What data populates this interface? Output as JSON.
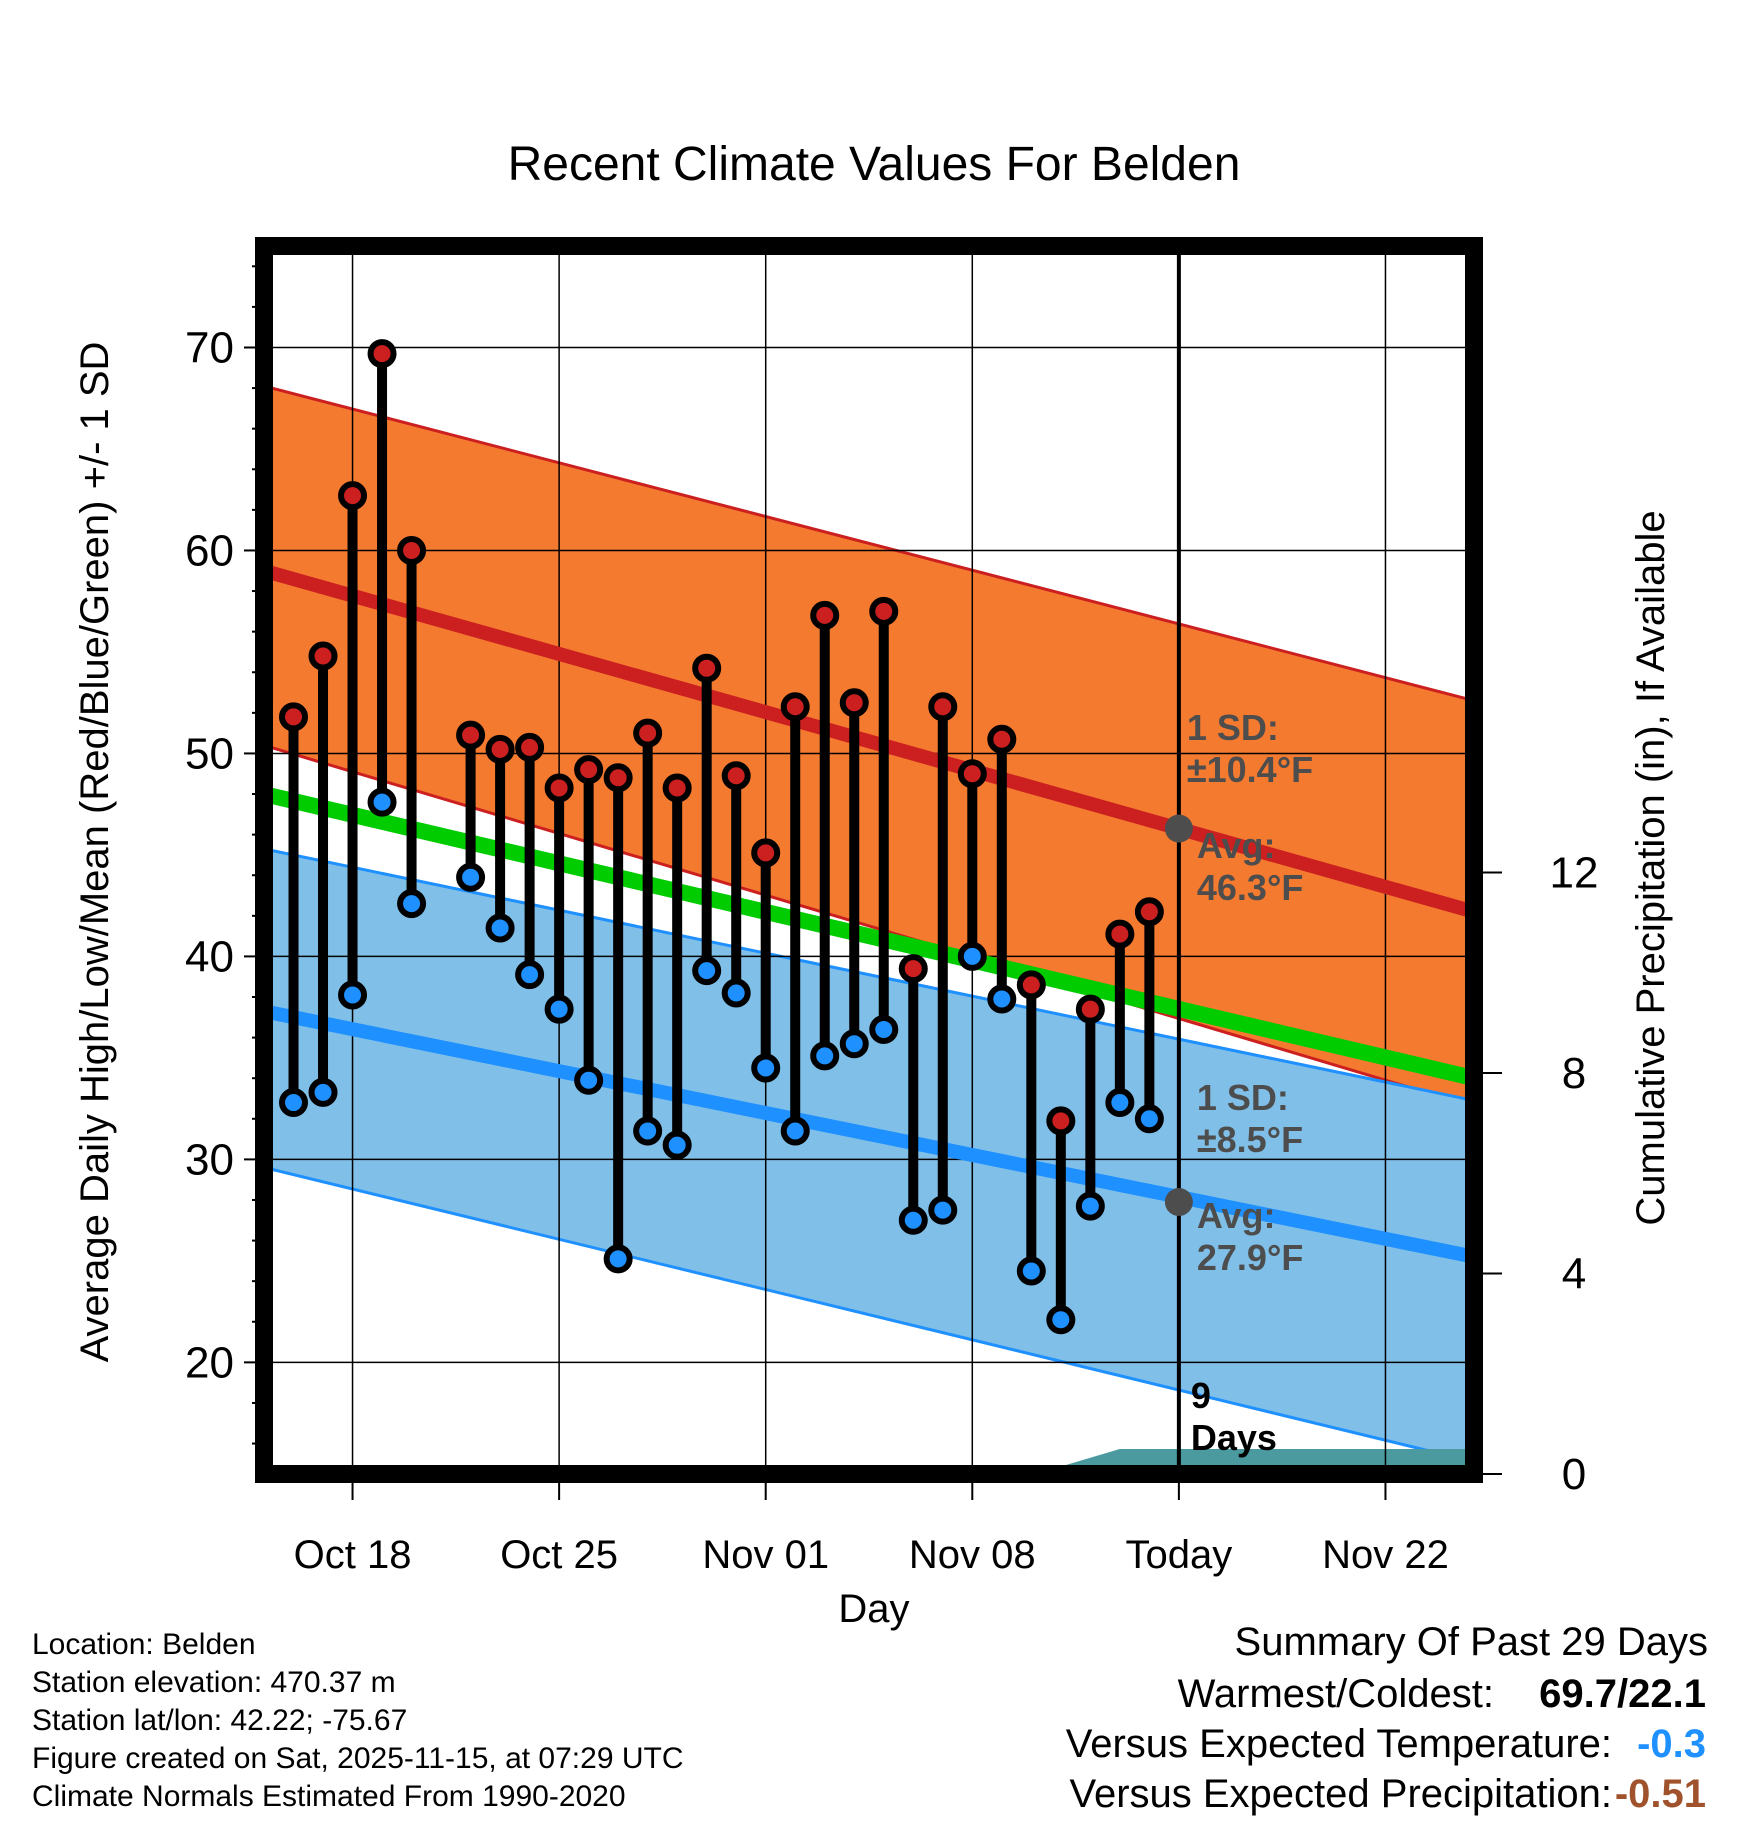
{
  "chart_data": {
    "type": "line",
    "title": "Recent Climate Values For Belden",
    "xlabel": "Day",
    "ylabel": "Average Daily High/Low/Mean (Red/Blue/Green) +/- 1 SD",
    "y2label": "Cumulative Precipitation (in), If Available",
    "x_range_days": [
      0,
      41
    ],
    "x_day0": "Oct 15",
    "ylim": [
      14.5,
      75
    ],
    "y_ticks": [
      "20",
      "30",
      "40",
      "50",
      "60",
      "70"
    ],
    "y2_ticks": [
      {
        "value": 0,
        "label": "0"
      },
      {
        "value": 4,
        "label": "4"
      },
      {
        "value": 8,
        "label": "8"
      },
      {
        "value": 12,
        "label": "12"
      }
    ],
    "y2_max": 24.5,
    "x_ticks": [
      {
        "day": 3,
        "label": "Oct 18"
      },
      {
        "day": 10,
        "label": "Oct 25"
      },
      {
        "day": 17,
        "label": "Nov 01"
      },
      {
        "day": 24,
        "label": "Nov 08"
      },
      {
        "day": 31,
        "label": "Today"
      },
      {
        "day": 38,
        "label": "Nov 22"
      }
    ],
    "today_day": 31,
    "normals": {
      "days": [
        0,
        41
      ],
      "high_avg": [
        59,
        42.2
      ],
      "high_sd_upper": [
        68.1,
        52.6
      ],
      "high_sd_lower": [
        50.4,
        32.6
      ],
      "low_avg": [
        37.3,
        25.2
      ],
      "low_sd_upper": [
        45.3,
        32.9
      ],
      "low_sd_lower": [
        29.6,
        15.1
      ],
      "mean_avg": [
        48,
        34
      ]
    },
    "daily": {
      "days": [
        1,
        2,
        3,
        4,
        5,
        7,
        8,
        9,
        10,
        11,
        12,
        13,
        14,
        15,
        16,
        17,
        18,
        19,
        20,
        21,
        22,
        23,
        24,
        25,
        26,
        27,
        28,
        29,
        30
      ],
      "highs": [
        51.8,
        54.8,
        62.7,
        69.7,
        60,
        50.9,
        50.2,
        50.3,
        48.3,
        49.2,
        48.8,
        51,
        48.3,
        54.2,
        48.9,
        45.1,
        52.3,
        56.8,
        52.5,
        57,
        39.4,
        52.3,
        49,
        50.7,
        38.6,
        31.9,
        37.4,
        41.1,
        42.2
      ],
      "lows": [
        32.8,
        33.3,
        38.1,
        47.6,
        42.6,
        43.9,
        41.4,
        39.1,
        37.4,
        33.9,
        25.1,
        31.4,
        30.7,
        39.3,
        38.2,
        34.5,
        31.4,
        35.1,
        35.7,
        36.4,
        27,
        27.5,
        40,
        37.9,
        24.5,
        22.1,
        27.7,
        32.8,
        32
      ]
    },
    "precipitation": {
      "days": [
        0,
        24,
        27,
        29,
        41
      ],
      "cumulative_in": [
        0,
        0,
        0.15,
        0.5,
        0.5
      ]
    },
    "annotations": {
      "high_sd_label": "1 SD:",
      "high_sd_value": "±10.4°F",
      "high_avg_label": "Avg:",
      "high_avg_value": "46.3°F",
      "low_sd_label": "1 SD:",
      "low_sd_value": "±8.5°F",
      "low_avg_label": "Avg:",
      "low_avg_value": "27.9°F",
      "days_count": "9",
      "days_unit": "Days",
      "high_avg_today": 46.3,
      "low_avg_today": 27.9
    },
    "colors": {
      "high_band": "#f47a30",
      "high_line": "#cc2020",
      "low_band": "#80bfe8",
      "low_line": "#1e90ff",
      "mean_line": "#00cc00",
      "precip": "#4a9aa0",
      "high_dot": "#cc2020",
      "low_dot": "#1e90ff",
      "today_dot": "#4d4d4d"
    }
  },
  "info": {
    "location": "Location: Belden",
    "elevation": "Station elevation: 470.37 m",
    "latlon": "Station lat/lon: 42.22; -75.67",
    "created": "Figure created on Sat, 2025-11-15, at 07:29 UTC",
    "normals_period": "Climate Normals Estimated From 1990-2020"
  },
  "summary": {
    "title": "Summary Of Past 29 Days",
    "warmest_coldest_label": "Warmest/Coldest:",
    "warmest_coldest_value": "69.7/22.1",
    "temp_label": "Versus Expected Temperature:",
    "temp_value": "-0.3",
    "temp_color": "#1e90ff",
    "precip_label": "Versus Expected Precipitation:",
    "precip_value": "-0.51",
    "precip_color": "#a0522d"
  }
}
